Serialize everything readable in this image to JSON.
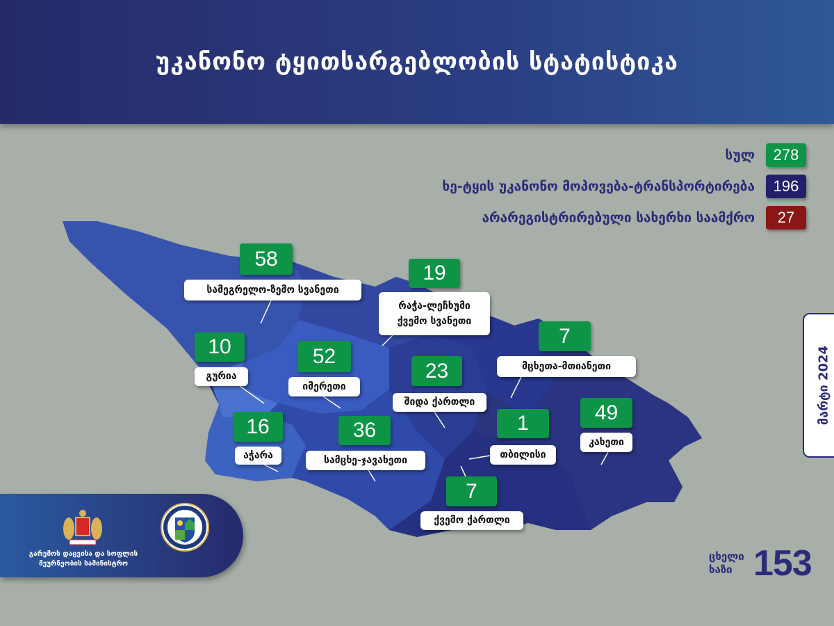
{
  "header": {
    "title": "უკანონო ტყითსარგებლობის სტატისტიკა"
  },
  "colors": {
    "total": "#0e9447",
    "transport": "#22206a",
    "sawmill": "#8b1616",
    "region_count": "#0e9447",
    "header": "#262a68"
  },
  "legend": [
    {
      "label": "სულ",
      "value": "278"
    },
    {
      "label": "ხე-ტყის უკანონო მოპოვება-ტრანსპორტირება",
      "value": "196"
    },
    {
      "label": "არარეგისტრირებული სახერხი საამქრო",
      "value": "27"
    }
  ],
  "regions": [
    {
      "name": "სამეგრელო-ზემო სვანეთი",
      "value": "58"
    },
    {
      "name": "რაჭა-ლეჩხუმი ქვემო სვანეთი",
      "value": "19"
    },
    {
      "name": "გურია",
      "value": "10"
    },
    {
      "name": "იმერეთი",
      "value": "52"
    },
    {
      "name": "შიდა ქართლი",
      "value": "23"
    },
    {
      "name": "მცხეთა-მთიანეთი",
      "value": "7"
    },
    {
      "name": "კახეთი",
      "value": "49"
    },
    {
      "name": "აჭარა",
      "value": "16"
    },
    {
      "name": "სამცხე-ჯავახეთი",
      "value": "36"
    },
    {
      "name": "თბილისი",
      "value": "1"
    },
    {
      "name": "ქვემო ქართლი",
      "value": "7"
    }
  ],
  "date": "მარტი 2024",
  "ministry": {
    "name": "გარემოს დაცვისა და სოფლის მეურნეობის სამინისტრო",
    "emblem": "coat-of-arms",
    "seal": "ministry-seal"
  },
  "hotline": {
    "label": "ცხელი ხაზი",
    "number": "153"
  }
}
